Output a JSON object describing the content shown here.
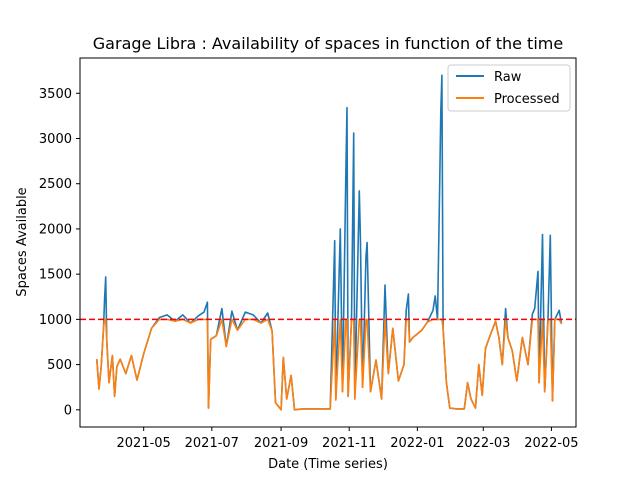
{
  "chart_data": {
    "type": "line",
    "title": "Garage Libra : Availability of spaces in function of the time",
    "xlabel": "Date (Time series)",
    "ylabel": "Spaces Available",
    "x_range": [
      "2021-03-05",
      "2022-05-23"
    ],
    "ylim": [
      -190,
      3890
    ],
    "x_ticks": [
      "2021-05",
      "2021-07",
      "2021-09",
      "2021-11",
      "2022-01",
      "2022-03",
      "2022-05"
    ],
    "y_ticks": [
      0,
      500,
      1000,
      1500,
      2000,
      2500,
      3000,
      3500
    ],
    "grid": false,
    "legend": {
      "placement": "top-right"
    },
    "threshold": {
      "value": 1000,
      "color": "#ff0000",
      "style": "dashed"
    },
    "series": [
      {
        "name": "Raw",
        "color": "#1f77b4",
        "points": [
          [
            "2021-03-20",
            560
          ],
          [
            "2021-03-22",
            230
          ],
          [
            "2021-03-24",
            480
          ],
          [
            "2021-03-26",
            900
          ],
          [
            "2021-03-27",
            1230
          ],
          [
            "2021-03-28",
            1470
          ],
          [
            "2021-03-29",
            760
          ],
          [
            "2021-03-31",
            300
          ],
          [
            "2021-04-03",
            600
          ],
          [
            "2021-04-05",
            150
          ],
          [
            "2021-04-07",
            480
          ],
          [
            "2021-04-10",
            560
          ],
          [
            "2021-04-15",
            400
          ],
          [
            "2021-04-20",
            600
          ],
          [
            "2021-04-25",
            330
          ],
          [
            "2021-05-01",
            620
          ],
          [
            "2021-05-08",
            900
          ],
          [
            "2021-05-15",
            1020
          ],
          [
            "2021-05-22",
            1050
          ],
          [
            "2021-05-29",
            980
          ],
          [
            "2021-06-05",
            1050
          ],
          [
            "2021-06-12",
            960
          ],
          [
            "2021-06-19",
            1040
          ],
          [
            "2021-06-24",
            1080
          ],
          [
            "2021-06-27",
            1190
          ],
          [
            "2021-06-28",
            20
          ],
          [
            "2021-06-30",
            780
          ],
          [
            "2021-07-05",
            820
          ],
          [
            "2021-07-10",
            1120
          ],
          [
            "2021-07-14",
            700
          ],
          [
            "2021-07-19",
            1090
          ],
          [
            "2021-07-24",
            880
          ],
          [
            "2021-07-31",
            1080
          ],
          [
            "2021-08-07",
            1050
          ],
          [
            "2021-08-14",
            960
          ],
          [
            "2021-08-20",
            1070
          ],
          [
            "2021-08-24",
            870
          ],
          [
            "2021-08-27",
            80
          ],
          [
            "2021-09-01",
            0
          ],
          [
            "2021-09-03",
            580
          ],
          [
            "2021-09-06",
            120
          ],
          [
            "2021-09-10",
            380
          ],
          [
            "2021-09-13",
            0
          ],
          [
            "2021-09-20",
            10
          ],
          [
            "2021-10-01",
            10
          ],
          [
            "2021-10-10",
            10
          ],
          [
            "2021-10-15",
            10
          ],
          [
            "2021-10-19",
            1870
          ],
          [
            "2021-10-20",
            110
          ],
          [
            "2021-10-24",
            2000
          ],
          [
            "2021-10-26",
            200
          ],
          [
            "2021-10-29",
            2650
          ],
          [
            "2021-10-30",
            3340
          ],
          [
            "2021-10-31",
            150
          ],
          [
            "2021-11-03",
            1000
          ],
          [
            "2021-11-05",
            3060
          ],
          [
            "2021-11-06",
            120
          ],
          [
            "2021-11-10",
            2420
          ],
          [
            "2021-11-11",
            1900
          ],
          [
            "2021-11-13",
            250
          ],
          [
            "2021-11-16",
            1700
          ],
          [
            "2021-11-17",
            1850
          ],
          [
            "2021-11-20",
            200
          ],
          [
            "2021-11-25",
            550
          ],
          [
            "2021-11-30",
            120
          ],
          [
            "2021-12-03",
            1380
          ],
          [
            "2021-12-06",
            400
          ],
          [
            "2021-12-10",
            900
          ],
          [
            "2021-12-15",
            320
          ],
          [
            "2021-12-20",
            500
          ],
          [
            "2021-12-22",
            1100
          ],
          [
            "2021-12-24",
            1280
          ],
          [
            "2021-12-25",
            750
          ],
          [
            "2021-12-28",
            800
          ],
          [
            "2022-01-05",
            880
          ],
          [
            "2022-01-10",
            970
          ],
          [
            "2022-01-15",
            1100
          ],
          [
            "2022-01-17",
            1260
          ],
          [
            "2022-01-19",
            1000
          ],
          [
            "2022-01-21",
            2500
          ],
          [
            "2022-01-22",
            3300
          ],
          [
            "2022-01-23",
            3700
          ],
          [
            "2022-01-24",
            900
          ],
          [
            "2022-01-27",
            300
          ],
          [
            "2022-01-30",
            20
          ],
          [
            "2022-02-05",
            10
          ],
          [
            "2022-02-12",
            10
          ],
          [
            "2022-02-15",
            300
          ],
          [
            "2022-02-18",
            120
          ],
          [
            "2022-02-22",
            20
          ],
          [
            "2022-02-25",
            500
          ],
          [
            "2022-02-28",
            160
          ],
          [
            "2022-03-03",
            680
          ],
          [
            "2022-03-08",
            850
          ],
          [
            "2022-03-12",
            980
          ],
          [
            "2022-03-15",
            800
          ],
          [
            "2022-03-18",
            500
          ],
          [
            "2022-03-21",
            1120
          ],
          [
            "2022-03-23",
            800
          ],
          [
            "2022-03-27",
            650
          ],
          [
            "2022-03-31",
            320
          ],
          [
            "2022-04-05",
            800
          ],
          [
            "2022-04-10",
            500
          ],
          [
            "2022-04-14",
            1060
          ],
          [
            "2022-04-16",
            1120
          ],
          [
            "2022-04-19",
            1530
          ],
          [
            "2022-04-20",
            300
          ],
          [
            "2022-04-23",
            1940
          ],
          [
            "2022-04-25",
            200
          ],
          [
            "2022-04-28",
            1050
          ],
          [
            "2022-04-30",
            1930
          ],
          [
            "2022-05-02",
            100
          ],
          [
            "2022-05-04",
            1000
          ],
          [
            "2022-05-06",
            1050
          ],
          [
            "2022-05-08",
            1100
          ],
          [
            "2022-05-10",
            950
          ]
        ]
      },
      {
        "name": "Processed",
        "color": "#ff7f0e",
        "points": [
          [
            "2021-03-20",
            560
          ],
          [
            "2021-03-22",
            230
          ],
          [
            "2021-03-24",
            480
          ],
          [
            "2021-03-26",
            900
          ],
          [
            "2021-03-27",
            1000
          ],
          [
            "2021-03-28",
            1000
          ],
          [
            "2021-03-29",
            760
          ],
          [
            "2021-03-31",
            300
          ],
          [
            "2021-04-03",
            600
          ],
          [
            "2021-04-05",
            150
          ],
          [
            "2021-04-07",
            480
          ],
          [
            "2021-04-10",
            560
          ],
          [
            "2021-04-15",
            400
          ],
          [
            "2021-04-20",
            600
          ],
          [
            "2021-04-25",
            330
          ],
          [
            "2021-05-01",
            620
          ],
          [
            "2021-05-08",
            900
          ],
          [
            "2021-05-15",
            1000
          ],
          [
            "2021-05-22",
            1000
          ],
          [
            "2021-05-29",
            980
          ],
          [
            "2021-06-05",
            1000
          ],
          [
            "2021-06-12",
            960
          ],
          [
            "2021-06-19",
            1000
          ],
          [
            "2021-06-24",
            1000
          ],
          [
            "2021-06-27",
            1000
          ],
          [
            "2021-06-28",
            20
          ],
          [
            "2021-06-30",
            780
          ],
          [
            "2021-07-05",
            820
          ],
          [
            "2021-07-10",
            1000
          ],
          [
            "2021-07-14",
            700
          ],
          [
            "2021-07-19",
            1000
          ],
          [
            "2021-07-24",
            880
          ],
          [
            "2021-07-31",
            1000
          ],
          [
            "2021-08-07",
            1000
          ],
          [
            "2021-08-14",
            960
          ],
          [
            "2021-08-20",
            1000
          ],
          [
            "2021-08-24",
            870
          ],
          [
            "2021-08-27",
            80
          ],
          [
            "2021-09-01",
            0
          ],
          [
            "2021-09-03",
            580
          ],
          [
            "2021-09-06",
            120
          ],
          [
            "2021-09-10",
            380
          ],
          [
            "2021-09-13",
            0
          ],
          [
            "2021-09-20",
            10
          ],
          [
            "2021-10-01",
            10
          ],
          [
            "2021-10-10",
            10
          ],
          [
            "2021-10-15",
            10
          ],
          [
            "2021-10-19",
            1000
          ],
          [
            "2021-10-20",
            110
          ],
          [
            "2021-10-24",
            1000
          ],
          [
            "2021-10-26",
            200
          ],
          [
            "2021-10-29",
            1000
          ],
          [
            "2021-10-30",
            1000
          ],
          [
            "2021-10-31",
            150
          ],
          [
            "2021-11-03",
            1000
          ],
          [
            "2021-11-05",
            1000
          ],
          [
            "2021-11-06",
            120
          ],
          [
            "2021-11-10",
            1000
          ],
          [
            "2021-11-11",
            1000
          ],
          [
            "2021-11-13",
            250
          ],
          [
            "2021-11-16",
            1000
          ],
          [
            "2021-11-17",
            1000
          ],
          [
            "2021-11-20",
            200
          ],
          [
            "2021-11-25",
            550
          ],
          [
            "2021-11-30",
            120
          ],
          [
            "2021-12-03",
            1000
          ],
          [
            "2021-12-06",
            400
          ],
          [
            "2021-12-10",
            900
          ],
          [
            "2021-12-15",
            320
          ],
          [
            "2021-12-20",
            500
          ],
          [
            "2021-12-22",
            1000
          ],
          [
            "2021-12-24",
            1000
          ],
          [
            "2021-12-25",
            750
          ],
          [
            "2021-12-28",
            800
          ],
          [
            "2022-01-05",
            880
          ],
          [
            "2022-01-10",
            970
          ],
          [
            "2022-01-15",
            1000
          ],
          [
            "2022-01-17",
            1000
          ],
          [
            "2022-01-19",
            1000
          ],
          [
            "2022-01-21",
            1000
          ],
          [
            "2022-01-22",
            1000
          ],
          [
            "2022-01-23",
            1000
          ],
          [
            "2022-01-24",
            900
          ],
          [
            "2022-01-27",
            300
          ],
          [
            "2022-01-30",
            20
          ],
          [
            "2022-02-05",
            10
          ],
          [
            "2022-02-12",
            10
          ],
          [
            "2022-02-15",
            300
          ],
          [
            "2022-02-18",
            120
          ],
          [
            "2022-02-22",
            20
          ],
          [
            "2022-02-25",
            500
          ],
          [
            "2022-02-28",
            160
          ],
          [
            "2022-03-03",
            680
          ],
          [
            "2022-03-08",
            850
          ],
          [
            "2022-03-12",
            980
          ],
          [
            "2022-03-15",
            800
          ],
          [
            "2022-03-18",
            500
          ],
          [
            "2022-03-21",
            1000
          ],
          [
            "2022-03-23",
            800
          ],
          [
            "2022-03-27",
            650
          ],
          [
            "2022-03-31",
            320
          ],
          [
            "2022-04-05",
            800
          ],
          [
            "2022-04-10",
            500
          ],
          [
            "2022-04-14",
            1000
          ],
          [
            "2022-04-16",
            1000
          ],
          [
            "2022-04-19",
            1000
          ],
          [
            "2022-04-20",
            300
          ],
          [
            "2022-04-23",
            1000
          ],
          [
            "2022-04-25",
            200
          ],
          [
            "2022-04-28",
            1000
          ],
          [
            "2022-04-30",
            1000
          ],
          [
            "2022-05-02",
            100
          ],
          [
            "2022-05-04",
            1000
          ],
          [
            "2022-05-06",
            1000
          ],
          [
            "2022-05-08",
            1000
          ],
          [
            "2022-05-10",
            950
          ]
        ]
      }
    ]
  }
}
